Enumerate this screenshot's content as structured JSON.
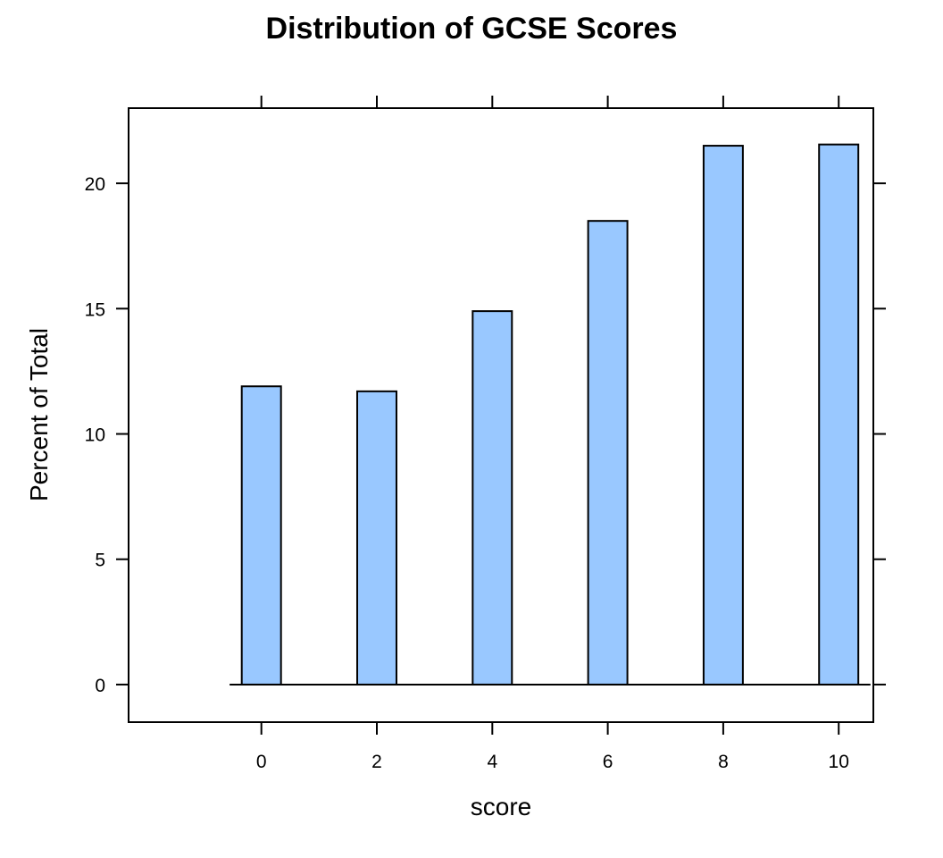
{
  "chart_data": {
    "type": "bar",
    "title": "Distribution of GCSE Scores",
    "xlabel": "score",
    "ylabel": "Percent of Total",
    "x": [
      0,
      2,
      4,
      6,
      8,
      10
    ],
    "values": [
      11.9,
      11.7,
      14.9,
      18.5,
      21.5,
      21.55
    ],
    "bin_width": 1,
    "xlim": [
      -2.3,
      10.6
    ],
    "ylim": [
      -1.5,
      23.0
    ],
    "x_ticks": [
      0,
      2,
      4,
      6,
      8,
      10
    ],
    "y_ticks": [
      0,
      5,
      10,
      15,
      20
    ],
    "bar_color": "#99c8ff",
    "grid": false,
    "legend": "none"
  }
}
